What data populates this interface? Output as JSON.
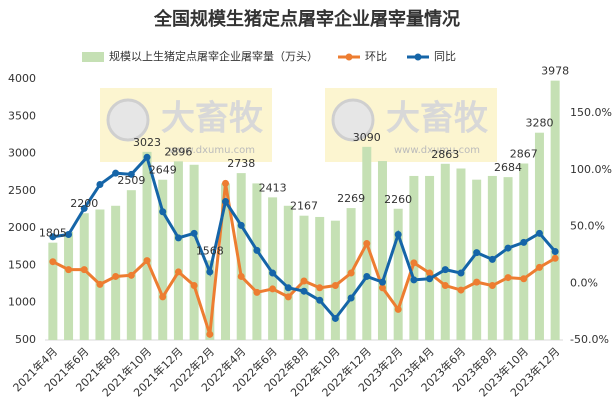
{
  "chart_data": {
    "type": "bar-line",
    "title": "全国规模生猪定点屠宰企业屠宰量情况",
    "categories": [
      "2021年4月",
      null,
      "2021年6月",
      null,
      "2021年8月",
      null,
      "2021年10月",
      null,
      "2021年12月",
      null,
      "2022年2月",
      null,
      "2022年4月",
      null,
      "2022年6月",
      null,
      "2022年8月",
      null,
      "2022年10月",
      null,
      "2022年12月",
      null,
      "2023年2月",
      null,
      "2023年4月",
      null,
      "2023年6月",
      null,
      "2023年8月",
      null,
      "2023年10月",
      null,
      "2023年12月"
    ],
    "series": [
      {
        "name": "规模以上生猪定点屠宰企业屠宰量（万头）",
        "type": "bar",
        "color": "#c5e0b4",
        "values": [
          1805,
          1950,
          2200,
          2250,
          2300,
          2509,
          3023,
          2649,
          2896,
          2850,
          1568,
          2600,
          2738,
          2600,
          2413,
          2300,
          2167,
          2150,
          2100,
          2269,
          3090,
          2900,
          2260,
          2700,
          2700,
          2863,
          2800,
          2650,
          2700,
          2684,
          2867,
          3280,
          3978
        ],
        "value_labels": [
          "1805",
          null,
          "2200",
          null,
          null,
          "2509",
          "3023",
          "2649",
          "2896",
          null,
          "1568",
          null,
          "2738",
          null,
          "2413",
          null,
          "2167",
          null,
          null,
          "2269",
          "3090",
          null,
          "2260",
          null,
          null,
          "2863",
          null,
          null,
          null,
          "2684",
          "2867",
          "3280",
          "3978"
        ]
      },
      {
        "name": "环比",
        "type": "line",
        "axis": "y2",
        "color": "#ed7d31",
        "values": [
          19,
          12,
          12,
          -1,
          6,
          7,
          20,
          -12,
          10,
          -2,
          -45,
          88,
          6,
          -8,
          -5,
          -12,
          2,
          -4,
          -2,
          9,
          35,
          -4,
          -23,
          18,
          9,
          -2,
          -6,
          1,
          -2,
          5,
          4,
          14,
          22
        ]
      },
      {
        "name": "同比",
        "type": "line",
        "axis": "y2",
        "color": "#1565a8",
        "values": [
          41,
          43,
          66,
          87,
          97,
          96,
          111,
          63,
          40,
          44,
          10,
          72,
          51,
          29,
          9,
          -4,
          -7,
          -15,
          -31,
          -13,
          6,
          1,
          43,
          3,
          4,
          12,
          9,
          27,
          21,
          31,
          36,
          44,
          28
        ]
      }
    ],
    "ylim": [
      500,
      4000
    ],
    "yticks": [
      500,
      1000,
      1500,
      2000,
      2500,
      3000,
      3500,
      4000
    ],
    "y2lim": [
      -50,
      180
    ],
    "y2ticks": [
      {
        "value": -50,
        "label": "-50.0%"
      },
      {
        "value": 0,
        "label": "0.0%"
      },
      {
        "value": 50,
        "label": "50.0%"
      },
      {
        "value": 100,
        "label": "100.0%"
      },
      {
        "value": 150,
        "label": "150.0%"
      }
    ],
    "grid": false,
    "legend": "top",
    "watermark": {
      "brand": "大畜牧",
      "url": "www.dxumu.com"
    }
  }
}
